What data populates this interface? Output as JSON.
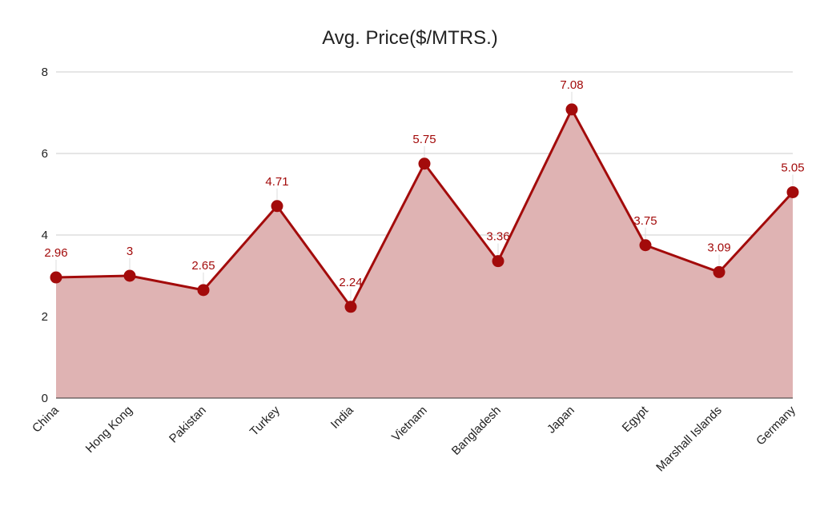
{
  "chart_data": {
    "type": "area",
    "title": "Avg. Price($/MTRS.)",
    "xlabel": "",
    "ylabel": "",
    "categories": [
      "China",
      "Hong Kong",
      "Pakistan",
      "Turkey",
      "India",
      "Vietnam",
      "Bangladesh",
      "Japan",
      "Egypt",
      "Marshall Islands",
      "Germany"
    ],
    "values": [
      2.96,
      3,
      2.65,
      4.71,
      2.24,
      5.75,
      3.36,
      7.08,
      3.75,
      3.09,
      5.05
    ],
    "data_labels": [
      "2.96",
      "3",
      "2.65",
      "4.71",
      "2.24",
      "5.75",
      "3.36",
      "7.08",
      "3.75",
      "3.09",
      "5.05"
    ],
    "y_ticks": [
      "0",
      "2",
      "4",
      "6",
      "8"
    ],
    "ylim": [
      0,
      8
    ],
    "grid": true,
    "legend": "none",
    "markers": true,
    "colors": {
      "line": "#a30b0b",
      "fill": "#dfb3b3",
      "grid": "#cccccc",
      "baseline": "#333333",
      "label": "#a30b0b"
    }
  }
}
